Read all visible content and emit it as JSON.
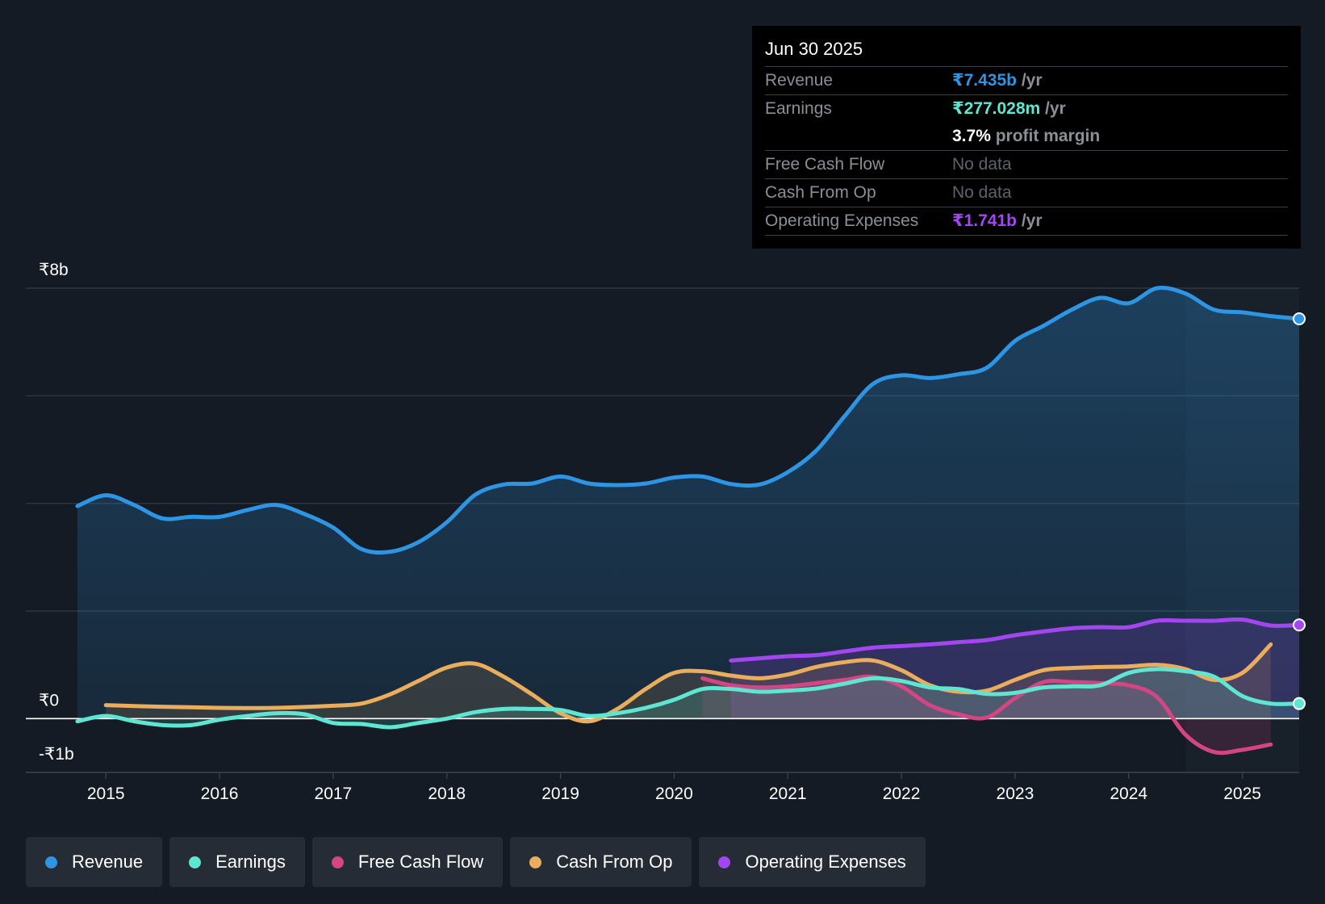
{
  "tooltip": {
    "date": "Jun 30 2025",
    "revenue_label": "Revenue",
    "revenue_value": "₹7.435b",
    "revenue_unit": "/yr",
    "earnings_label": "Earnings",
    "earnings_value": "₹277.028m",
    "earnings_unit": "/yr",
    "margin_value": "3.7%",
    "margin_label": "profit margin",
    "fcf_label": "Free Cash Flow",
    "fcf_value": "No data",
    "cfo_label": "Cash From Op",
    "cfo_value": "No data",
    "opex_label": "Operating Expenses",
    "opex_value": "₹1.741b",
    "opex_unit": "/yr"
  },
  "legend": [
    {
      "label": "Revenue",
      "color": "#2d95e3"
    },
    {
      "label": "Earnings",
      "color": "#5ee6d2"
    },
    {
      "label": "Free Cash Flow",
      "color": "#d34583"
    },
    {
      "label": "Cash From Op",
      "color": "#e9ad5c"
    },
    {
      "label": "Operating Expenses",
      "color": "#a346f0"
    }
  ],
  "chart_data": {
    "type": "line",
    "title": "",
    "y_tick_labels": [
      {
        "value": 8,
        "label": "₹8b"
      },
      {
        "value": 0,
        "label": "₹0"
      },
      {
        "value": -1,
        "label": "-₹1b"
      }
    ],
    "ylim": [
      -1,
      8
    ],
    "gridlines": [
      8,
      6,
      4,
      2,
      0,
      -1
    ],
    "x_ticks": [
      2015,
      2016,
      2017,
      2018,
      2019,
      2020,
      2021,
      2022,
      2023,
      2024,
      2025
    ],
    "xlim": [
      2014.5,
      2025.5
    ],
    "forecast_start": 2024.5,
    "series": [
      {
        "name": "Revenue",
        "color": "#2d95e3",
        "fill": true,
        "x": [
          2014.75,
          2015.0,
          2015.25,
          2015.5,
          2015.75,
          2016.0,
          2016.25,
          2016.5,
          2016.75,
          2017.0,
          2017.25,
          2017.5,
          2017.75,
          2018.0,
          2018.25,
          2018.5,
          2018.75,
          2019.0,
          2019.25,
          2019.5,
          2019.75,
          2020.0,
          2020.25,
          2020.5,
          2020.75,
          2021.0,
          2021.25,
          2021.5,
          2021.75,
          2022.0,
          2022.25,
          2022.5,
          2022.75,
          2023.0,
          2023.25,
          2023.5,
          2023.75,
          2024.0,
          2024.25,
          2024.5,
          2024.75,
          2025.0,
          2025.25,
          2025.5
        ],
        "values": [
          3.95,
          4.15,
          3.97,
          3.72,
          3.75,
          3.75,
          3.88,
          3.97,
          3.8,
          3.55,
          3.15,
          3.1,
          3.28,
          3.65,
          4.16,
          4.35,
          4.37,
          4.5,
          4.37,
          4.34,
          4.37,
          4.48,
          4.5,
          4.36,
          4.35,
          4.58,
          4.98,
          5.62,
          6.22,
          6.38,
          6.33,
          6.4,
          6.52,
          7.02,
          7.3,
          7.6,
          7.82,
          7.72,
          8.0,
          7.9,
          7.6,
          7.55,
          7.48,
          7.43
        ]
      },
      {
        "name": "Earnings",
        "color": "#5ee6d2",
        "fill": true,
        "x": [
          2014.75,
          2015.0,
          2015.25,
          2015.5,
          2015.75,
          2016.0,
          2016.25,
          2016.5,
          2016.75,
          2017.0,
          2017.25,
          2017.5,
          2017.75,
          2018.0,
          2018.25,
          2018.5,
          2018.75,
          2019.0,
          2019.25,
          2019.5,
          2019.75,
          2020.0,
          2020.25,
          2020.5,
          2020.75,
          2021.0,
          2021.25,
          2021.5,
          2021.75,
          2022.0,
          2022.25,
          2022.5,
          2022.75,
          2023.0,
          2023.25,
          2023.5,
          2023.75,
          2024.0,
          2024.25,
          2024.5,
          2024.75,
          2025.0,
          2025.25,
          2025.5
        ],
        "values": [
          -0.05,
          0.05,
          -0.05,
          -0.12,
          -0.12,
          -0.02,
          0.05,
          0.1,
          0.08,
          -0.08,
          -0.1,
          -0.16,
          -0.08,
          0.0,
          0.12,
          0.18,
          0.18,
          0.16,
          0.05,
          0.1,
          0.2,
          0.35,
          0.55,
          0.55,
          0.5,
          0.52,
          0.56,
          0.65,
          0.75,
          0.7,
          0.58,
          0.55,
          0.46,
          0.48,
          0.58,
          0.6,
          0.62,
          0.85,
          0.92,
          0.88,
          0.78,
          0.42,
          0.28,
          0.28
        ]
      },
      {
        "name": "Free Cash Flow",
        "color": "#d34583",
        "fill": true,
        "x": [
          2020.25,
          2020.5,
          2020.75,
          2021.0,
          2021.25,
          2021.5,
          2021.75,
          2022.0,
          2022.25,
          2022.5,
          2022.75,
          2023.0,
          2023.25,
          2023.5,
          2023.75,
          2024.0,
          2024.25,
          2024.5,
          2024.75,
          2025.0,
          2025.25
        ],
        "values": [
          0.75,
          0.62,
          0.58,
          0.6,
          0.66,
          0.72,
          0.78,
          0.6,
          0.25,
          0.08,
          0.02,
          0.38,
          0.68,
          0.68,
          0.66,
          0.62,
          0.4,
          -0.3,
          -0.62,
          -0.58,
          -0.48
        ]
      },
      {
        "name": "Cash From Op",
        "color": "#e9ad5c",
        "fill": true,
        "x": [
          2015.0,
          2015.5,
          2016.0,
          2016.5,
          2017.0,
          2017.25,
          2017.5,
          2017.75,
          2018.0,
          2018.25,
          2018.5,
          2018.75,
          2019.0,
          2019.25,
          2019.5,
          2019.75,
          2020.0,
          2020.25,
          2020.5,
          2020.75,
          2021.0,
          2021.25,
          2021.5,
          2021.75,
          2022.0,
          2022.25,
          2022.5,
          2022.75,
          2023.0,
          2023.25,
          2023.5,
          2023.75,
          2024.0,
          2024.25,
          2024.5,
          2024.75,
          2025.0,
          2025.25
        ],
        "values": [
          0.25,
          0.22,
          0.2,
          0.2,
          0.24,
          0.28,
          0.45,
          0.7,
          0.95,
          1.02,
          0.78,
          0.45,
          0.1,
          -0.05,
          0.18,
          0.55,
          0.85,
          0.88,
          0.8,
          0.75,
          0.82,
          0.96,
          1.05,
          1.08,
          0.9,
          0.62,
          0.5,
          0.52,
          0.72,
          0.9,
          0.94,
          0.96,
          0.97,
          1.0,
          0.92,
          0.72,
          0.85,
          1.38
        ]
      },
      {
        "name": "Operating Expenses",
        "color": "#a346f0",
        "fill": true,
        "x": [
          2020.5,
          2020.75,
          2021.0,
          2021.25,
          2021.5,
          2021.75,
          2022.0,
          2022.25,
          2022.5,
          2022.75,
          2023.0,
          2023.25,
          2023.5,
          2023.75,
          2024.0,
          2024.25,
          2024.5,
          2024.75,
          2025.0,
          2025.25,
          2025.5
        ],
        "values": [
          1.08,
          1.12,
          1.16,
          1.18,
          1.25,
          1.32,
          1.35,
          1.38,
          1.42,
          1.46,
          1.55,
          1.62,
          1.68,
          1.7,
          1.7,
          1.82,
          1.82,
          1.82,
          1.84,
          1.73,
          1.741
        ]
      }
    ]
  }
}
